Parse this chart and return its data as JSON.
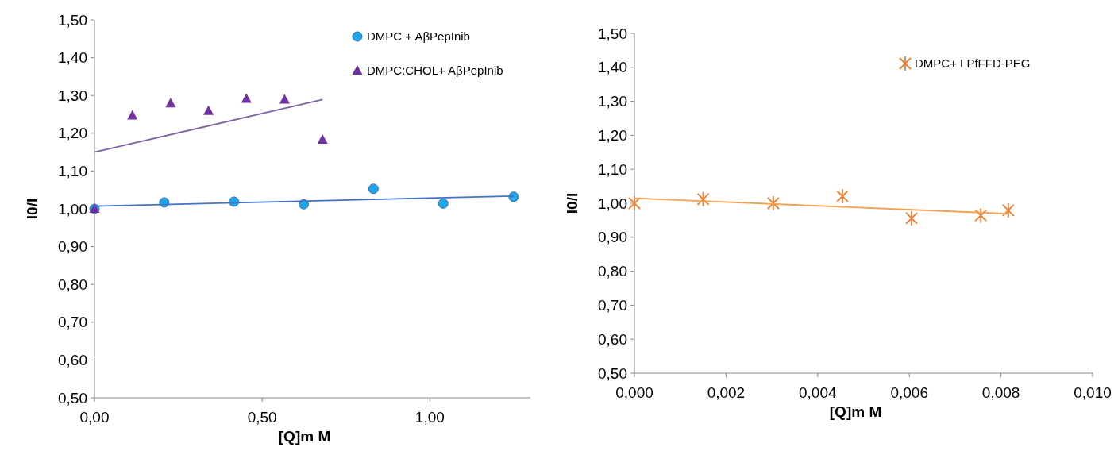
{
  "chart_data": [
    {
      "type": "scatter",
      "xlabel": "[Q]m M",
      "ylabel": "I0/I",
      "xlim": [
        0,
        1.3
      ],
      "xticks": [
        {
          "value": 0,
          "label": "0,00"
        },
        {
          "value": 0.5,
          "label": "0,50"
        },
        {
          "value": 1,
          "label": "1,00"
        }
      ],
      "ylim": [
        0.5,
        1.5
      ],
      "yticks": [
        {
          "value": 0.5,
          "label": "0,50"
        },
        {
          "value": 0.6,
          "label": "0,60"
        },
        {
          "value": 0.7,
          "label": "0,70"
        },
        {
          "value": 0.8,
          "label": "0,80"
        },
        {
          "value": 0.9,
          "label": "0,90"
        },
        {
          "value": 1.0,
          "label": "1,00"
        },
        {
          "value": 1.1,
          "label": "1,10"
        },
        {
          "value": 1.2,
          "label": "1,20"
        },
        {
          "value": 1.3,
          "label": "1,30"
        },
        {
          "value": 1.4,
          "label": "1,40"
        },
        {
          "value": 1.5,
          "label": "1,50"
        }
      ],
      "legend": "top right",
      "series": [
        {
          "name": "DMPC + AβPepInib",
          "color": "#1fa6e8",
          "marker": "circle",
          "x": [
            0,
            0.208,
            0.416,
            0.624,
            0.832,
            1.04,
            1.25
          ],
          "values": [
            1.0,
            1.017,
            1.019,
            1.012,
            1.053,
            1.014,
            1.032
          ]
        },
        {
          "name": "DMPC:CHOL+ AβPepInib",
          "color": "#7030a0",
          "marker": "triangle",
          "x": [
            0,
            0.113,
            0.227,
            0.34,
            0.453,
            0.567,
            0.68
          ],
          "values": [
            1.0,
            1.247,
            1.279,
            1.259,
            1.291,
            1.289,
            1.183
          ]
        },
        {
          "type": "line",
          "color": "#4472c4",
          "x": [
            0,
            1.25
          ],
          "values": [
            1.007,
            1.034
          ]
        },
        {
          "type": "line",
          "color": "#8064a2",
          "x": [
            0,
            0.68
          ],
          "values": [
            1.15,
            1.289
          ]
        }
      ]
    },
    {
      "type": "scatter",
      "xlabel": "[Q]m M",
      "ylabel": "I0/I",
      "xlim": [
        0,
        0.01
      ],
      "xticks": [
        {
          "value": 0,
          "label": "0,000"
        },
        {
          "value": 0.002,
          "label": "0,002"
        },
        {
          "value": 0.004,
          "label": "0,004"
        },
        {
          "value": 0.006,
          "label": "0,006"
        },
        {
          "value": 0.008,
          "label": "0,008"
        },
        {
          "value": 0.01,
          "label": "0,010"
        }
      ],
      "ylim": [
        0.5,
        1.5
      ],
      "yticks": [
        {
          "value": 0.5,
          "label": "0,50"
        },
        {
          "value": 0.6,
          "label": "0,60"
        },
        {
          "value": 0.7,
          "label": "0,70"
        },
        {
          "value": 0.8,
          "label": "0,80"
        },
        {
          "value": 0.9,
          "label": "0,90"
        },
        {
          "value": 1.0,
          "label": "1,00"
        },
        {
          "value": 1.1,
          "label": "1,10"
        },
        {
          "value": 1.2,
          "label": "1,20"
        },
        {
          "value": 1.3,
          "label": "1,30"
        },
        {
          "value": 1.4,
          "label": "1,40"
        },
        {
          "value": 1.5,
          "label": "1,50"
        }
      ],
      "legend": "top right",
      "series": [
        {
          "name": "DMPC+ LPfFFD-PEG",
          "color": "#ed7d31",
          "marker": "cross",
          "x": [
            0,
            0.0015,
            0.00303,
            0.00454,
            0.00605,
            0.00756,
            0.00816
          ],
          "values": [
            1.0,
            1.012,
            1.0,
            1.021,
            0.956,
            0.964,
            0.979
          ]
        },
        {
          "type": "line",
          "color": "#f4a050",
          "x": [
            0,
            0.00816
          ],
          "values": [
            1.015,
            0.969
          ]
        }
      ]
    }
  ]
}
